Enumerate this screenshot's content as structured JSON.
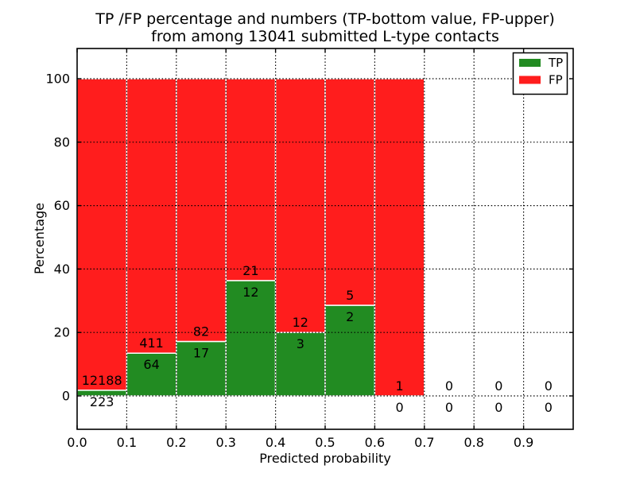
{
  "figure": {
    "title_line1": "TP /FP percentage and numbers (TP-bottom value, FP-upper)",
    "title_line2": "from among 13041 submitted L-type contacts"
  },
  "axes": {
    "xlabel": "Predicted probability",
    "ylabel": "Percentage",
    "x_tick_values": [
      0.0,
      0.1,
      0.2,
      0.3,
      0.4,
      0.5,
      0.6,
      0.7,
      0.8,
      0.9
    ],
    "x_tick_labels": [
      "0.0",
      "0.1",
      "0.2",
      "0.3",
      "0.4",
      "0.5",
      "0.6",
      "0.7",
      "0.8",
      "0.9"
    ],
    "y_tick_values": [
      0,
      20,
      40,
      60,
      80,
      100
    ],
    "y_tick_labels": [
      "0",
      "20",
      "40",
      "60",
      "80",
      "100"
    ],
    "grid": true,
    "grid_style": "dotted"
  },
  "legend": {
    "position": "upper-right",
    "items": [
      {
        "label": "TP",
        "color": "#228B22"
      },
      {
        "label": "FP",
        "color": "#FF1D1D"
      }
    ]
  },
  "chart_data": {
    "type": "bar",
    "subtype": "stacked-normalized-percent",
    "title": "TP /FP percentage and numbers (TP-bottom value, FP-upper)\nfrom among 13041 submitted L-type contacts",
    "xlabel": "Predicted probability",
    "ylabel": "Percentage",
    "xlim": [
      0.0,
      1.0
    ],
    "ylim": [
      -10.5,
      109.5
    ],
    "bin_width": 0.1,
    "total_contacts": 13041,
    "annotation_note": "TP count shown below stack boundary, FP count shown above it",
    "series": [
      {
        "name": "TP",
        "color": "#228B22"
      },
      {
        "name": "FP",
        "color": "#FF1D1D"
      }
    ],
    "bins": [
      {
        "range": [
          0.0,
          0.1
        ],
        "tp_count": 223,
        "fp_count": 12188,
        "tp_percent": 1.8,
        "fp_percent": 98.2
      },
      {
        "range": [
          0.1,
          0.2
        ],
        "tp_count": 64,
        "fp_count": 411,
        "tp_percent": 13.5,
        "fp_percent": 86.5
      },
      {
        "range": [
          0.2,
          0.3
        ],
        "tp_count": 17,
        "fp_count": 82,
        "tp_percent": 17.2,
        "fp_percent": 82.8
      },
      {
        "range": [
          0.3,
          0.4
        ],
        "tp_count": 12,
        "fp_count": 21,
        "tp_percent": 36.4,
        "fp_percent": 63.6
      },
      {
        "range": [
          0.4,
          0.5
        ],
        "tp_count": 3,
        "fp_count": 12,
        "tp_percent": 20.0,
        "fp_percent": 80.0
      },
      {
        "range": [
          0.5,
          0.6
        ],
        "tp_count": 2,
        "fp_count": 5,
        "tp_percent": 28.6,
        "fp_percent": 71.4
      },
      {
        "range": [
          0.6,
          0.7
        ],
        "tp_count": 0,
        "fp_count": 1,
        "tp_percent": 0.0,
        "fp_percent": 100.0
      },
      {
        "range": [
          0.7,
          0.8
        ],
        "tp_count": 0,
        "fp_count": 0,
        "tp_percent": 0.0,
        "fp_percent": 0.0
      },
      {
        "range": [
          0.8,
          0.9
        ],
        "tp_count": 0,
        "fp_count": 0,
        "tp_percent": 0.0,
        "fp_percent": 0.0
      },
      {
        "range": [
          0.9,
          1.0
        ],
        "tp_count": 0,
        "fp_count": 0,
        "tp_percent": 0.0,
        "fp_percent": 0.0
      }
    ]
  }
}
